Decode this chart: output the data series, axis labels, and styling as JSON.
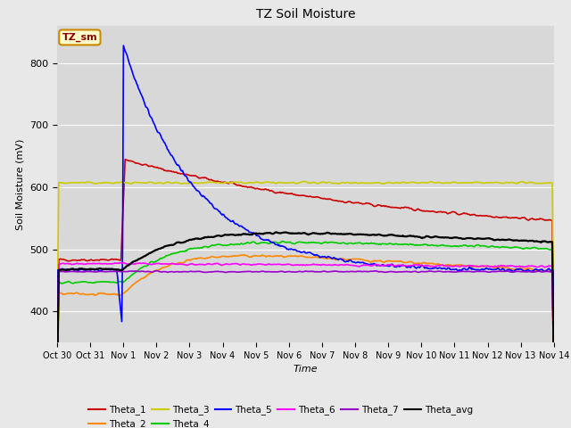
{
  "title": "TZ Soil Moisture",
  "xlabel": "Time",
  "ylabel": "Soil Moisture (mV)",
  "ylim": [
    350,
    860
  ],
  "xlim": [
    0,
    15
  ],
  "figsize": [
    6.4,
    4.8
  ],
  "dpi": 100,
  "background_color": "#e8e8e8",
  "plot_bg_color": "#d8d8d8",
  "series_colors": {
    "Theta_1": "#cc0000",
    "Theta_2": "#ff8800",
    "Theta_3": "#cccc00",
    "Theta_4": "#00cc00",
    "Theta_5": "#0000ff",
    "Theta_6": "#ff00ff",
    "Theta_7": "#9900cc",
    "Theta_avg": "#000000"
  },
  "annotation_box": {
    "text": "TZ_sm",
    "bg": "#ffffcc",
    "border": "#cc8800",
    "text_color": "#880000"
  },
  "x_tick_labels": [
    "Oct 30",
    "Oct 31",
    "Nov 1",
    "Nov 2",
    "Nov 3",
    "Nov 4",
    "Nov 5",
    "Nov 6",
    "Nov 7",
    "Nov 8",
    "Nov 9",
    "Nov 10",
    "Nov 11",
    "Nov 12",
    "Nov 13",
    "Nov 14"
  ],
  "num_points": 600,
  "spike_day": 2.0,
  "noise_seed": 42
}
